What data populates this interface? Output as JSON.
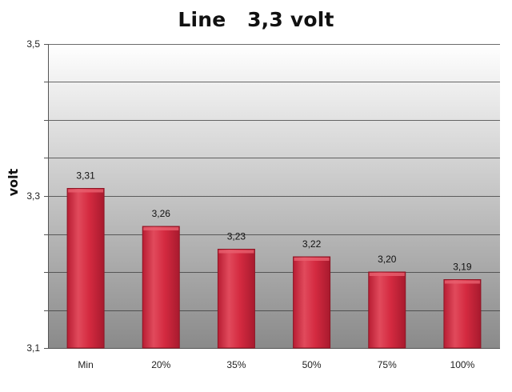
{
  "chart_data": {
    "type": "bar",
    "title": "Line   3,3 volt",
    "xlabel": "",
    "ylabel": "volt",
    "ylim": [
      3.1,
      3.5
    ],
    "yticks": [
      "3,1",
      "3,3",
      "3,5"
    ],
    "categories": [
      "Min",
      "20%",
      "35%",
      "50%",
      "75%",
      "100%"
    ],
    "values": [
      3.31,
      3.26,
      3.23,
      3.22,
      3.2,
      3.19
    ],
    "value_labels": [
      "3,31",
      "3,26",
      "3,23",
      "3,22",
      "3,20",
      "3,19"
    ],
    "grid": true,
    "legend": "none",
    "colors": {
      "bar": "#d42a40",
      "bar_highlight": "#e8606f",
      "bar_edge": "#8e1524",
      "plot_top": "#ffffff",
      "plot_bottom": "#8a8a8a",
      "grid": "#3a3a3a"
    }
  }
}
